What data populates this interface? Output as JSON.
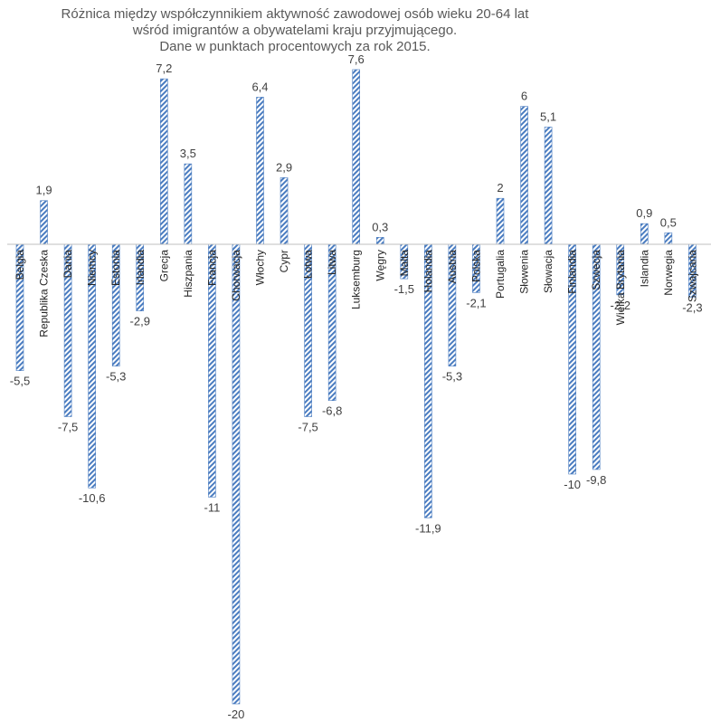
{
  "chart_data": {
    "type": "bar",
    "title": [
      "Różnica między współczynnikiem aktywność zawodowej osób wieku 20-64 lat",
      "wśród imigrantów a obywatelami kraju przyjmującego.",
      "Dane w punktach procentowych za rok 2015."
    ],
    "xlabel": "",
    "ylabel": "",
    "ylim": [
      -20,
      7.6
    ],
    "grid": false,
    "legend": "none",
    "bar_color": "#4a7cc0",
    "axis_color": "#bfbfbf",
    "categories": [
      "Belgia",
      "Republika Czeska",
      "Dania",
      "Niemcy",
      "Estonia",
      "Irlandia",
      "Grecja",
      "Hiszpania",
      "Francja",
      "Chorwacja",
      "Włochy",
      "Cypr",
      "Łotwa",
      "Litwa",
      "Luksemburg",
      "Węgry",
      "Malta",
      "Holandia",
      "Austria",
      "Polska",
      "Portugalia",
      "Słowenia",
      "Słowacja",
      "Finlandia",
      "Szwecja",
      "Wielka Brytania",
      "Islandia",
      "Norwegia",
      "Szwajcaria"
    ],
    "values": [
      -5.5,
      1.9,
      -7.5,
      -10.6,
      -5.3,
      -2.9,
      7.2,
      3.5,
      -11,
      -20,
      6.4,
      2.9,
      -7.5,
      -6.8,
      7.6,
      0.3,
      -1.5,
      -11.9,
      -5.3,
      -2.1,
      2,
      6,
      5.1,
      -10,
      -9.8,
      -2.2,
      0.9,
      0.5,
      -2.3
    ],
    "data_labels": [
      "-5,5",
      "1,9",
      "-7,5",
      "-10,6",
      "-5,3",
      "-2,9",
      "7,2",
      "3,5",
      "-11",
      "-20",
      "6,4",
      "2,9",
      "-7,5",
      "-6,8",
      "7,6",
      "0,3",
      "-1,5",
      "-11,9",
      "-5,3",
      "-2,1",
      "2",
      "6",
      "5,1",
      "-10",
      "-9,8",
      "-2,2",
      "0,9",
      "0,5",
      "-2,3"
    ]
  }
}
